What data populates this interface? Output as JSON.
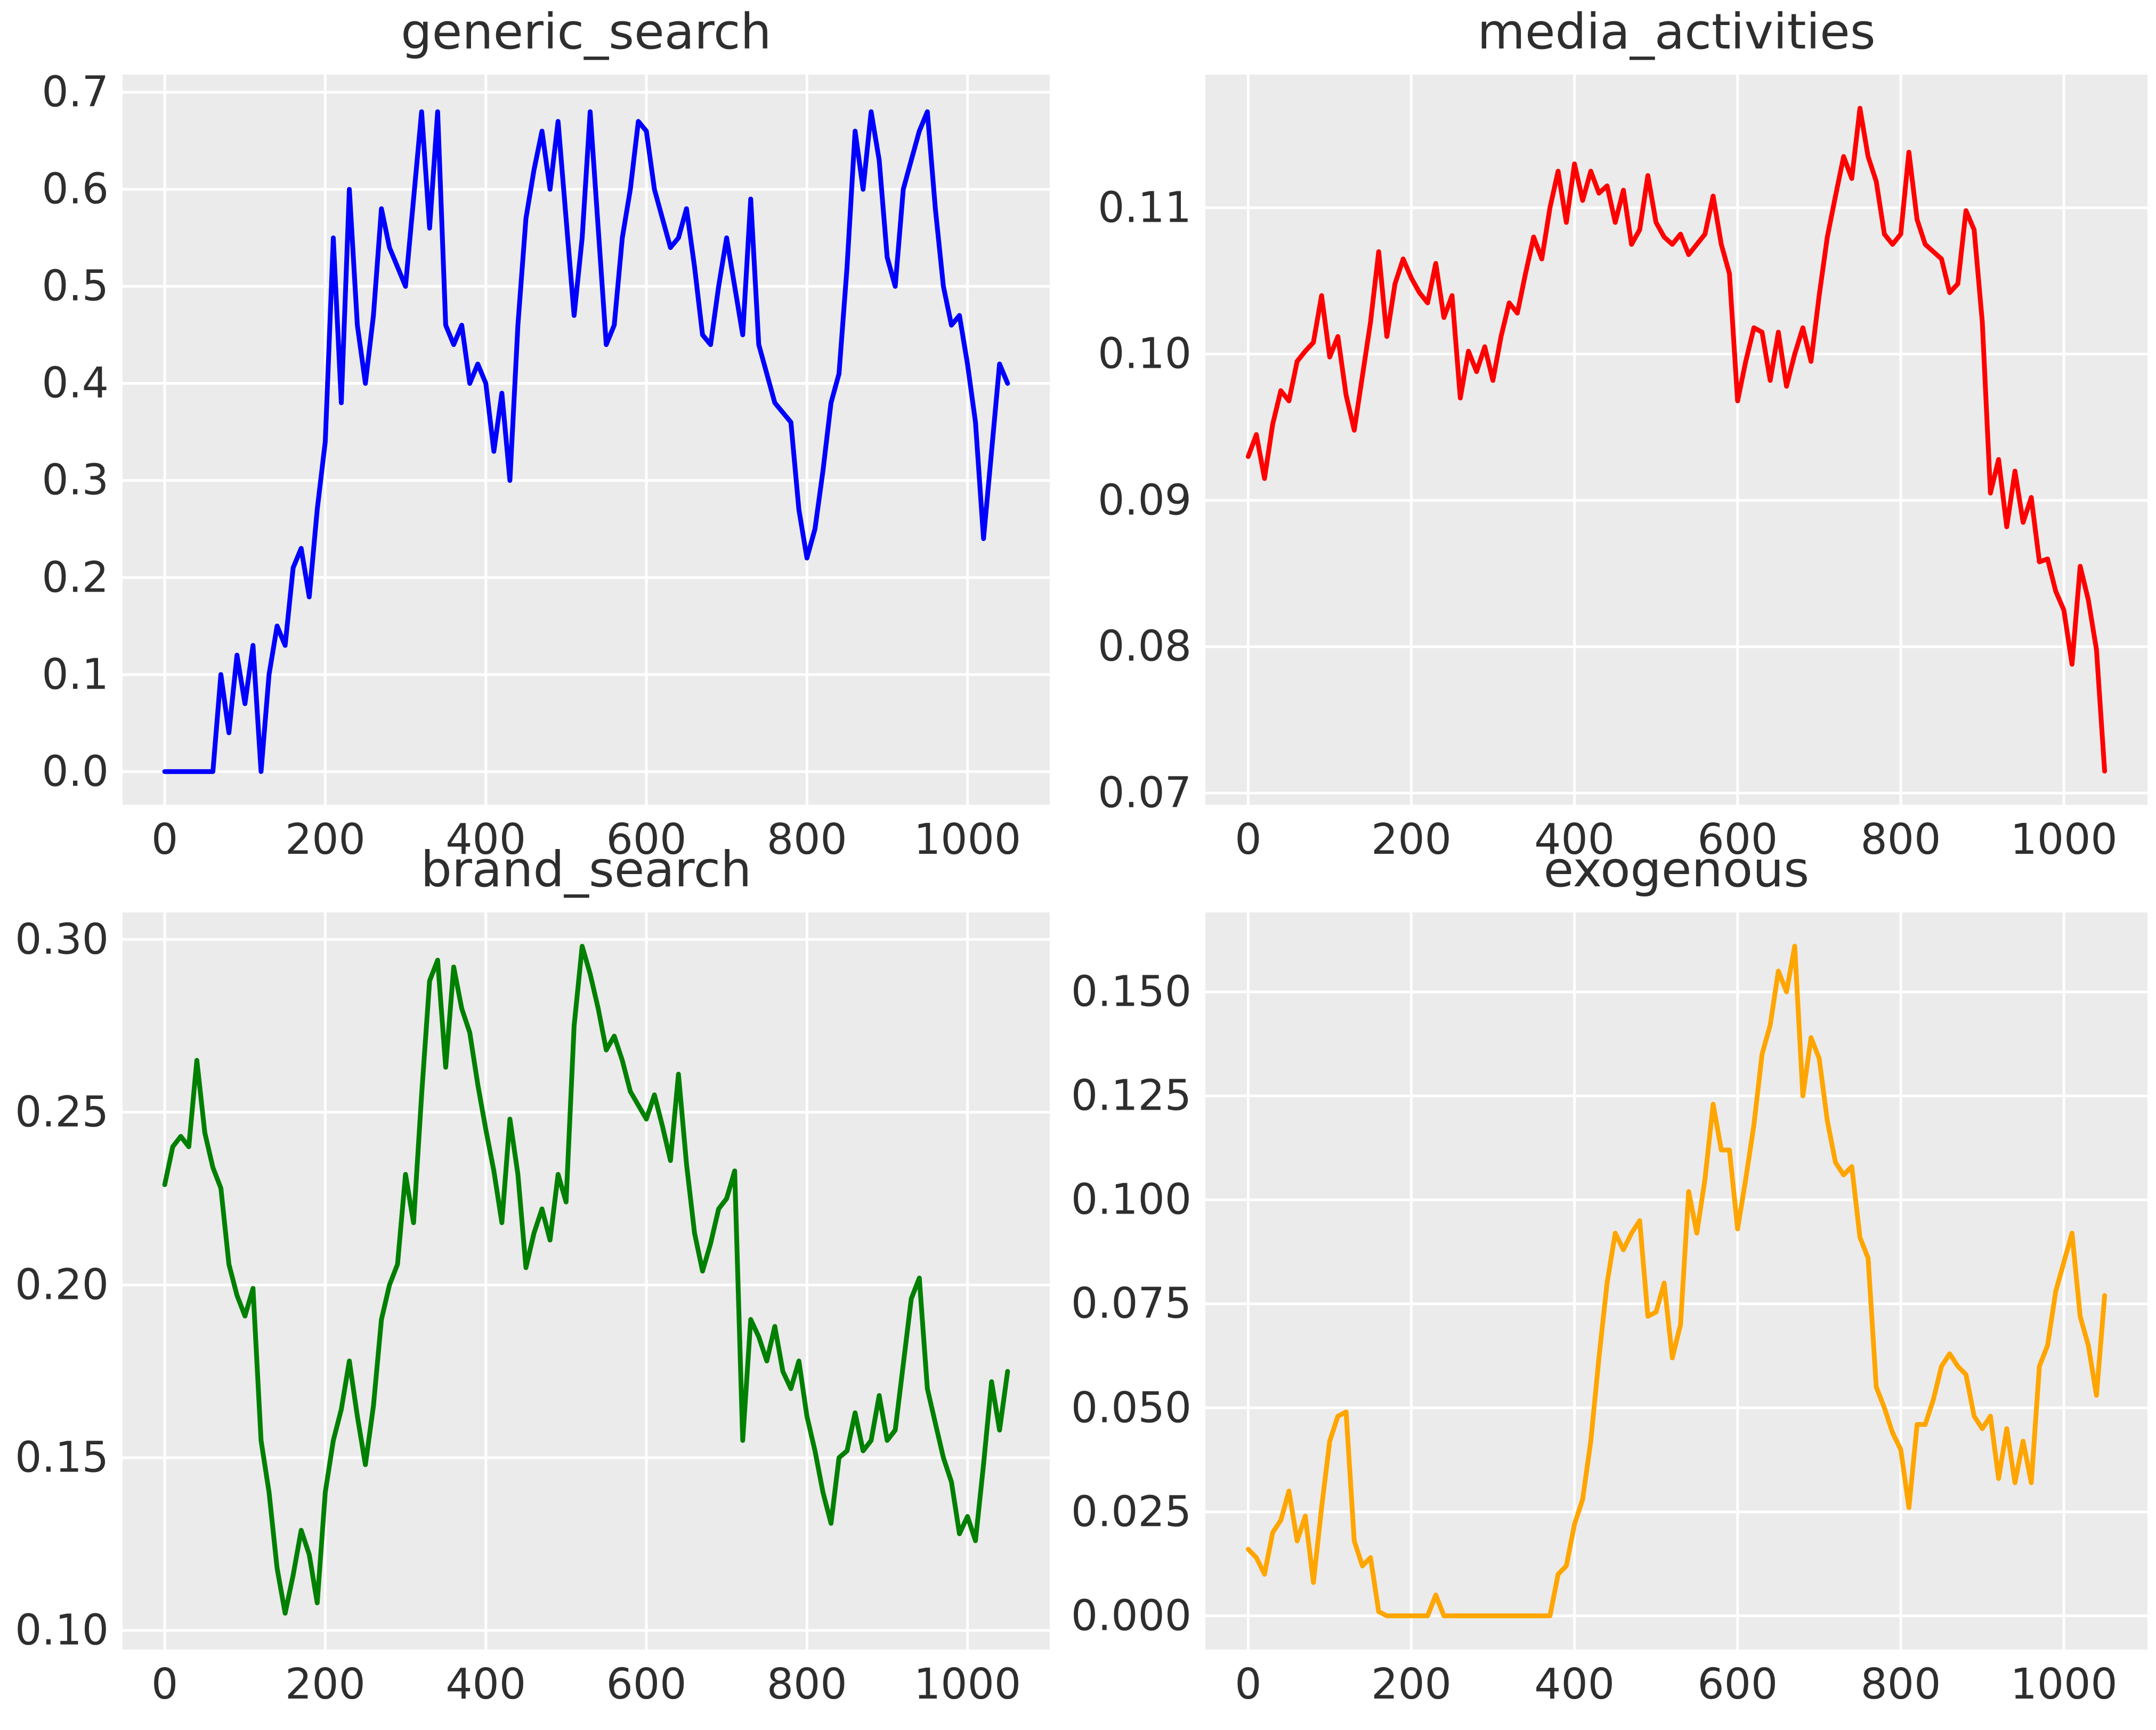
{
  "figure": {
    "background": "#ffffff",
    "axes_background": "#ebebeb",
    "grid_color": "#ffffff",
    "text_color": "#2e2e2e"
  },
  "chart_data": [
    {
      "type": "line",
      "title": "generic_search",
      "line_color": "#0000ff",
      "xlabel": "",
      "ylabel": "",
      "legend": "none",
      "grid": true,
      "x_tick_labels": [
        "0",
        "200",
        "400",
        "600",
        "800",
        "1000"
      ],
      "x_tick_values": [
        0,
        200,
        400,
        600,
        800,
        1000
      ],
      "y_tick_labels": [
        "0.0",
        "0.1",
        "0.2",
        "0.3",
        "0.4",
        "0.5",
        "0.6",
        "0.7"
      ],
      "y_tick_values": [
        0.0,
        0.1,
        0.2,
        0.3,
        0.4,
        0.5,
        0.6,
        0.7
      ],
      "xlim": [
        -52.5,
        1102.5
      ],
      "ylim": [
        -0.0342,
        0.7182
      ],
      "x_start": 0,
      "x_step": 10,
      "values": [
        0,
        0,
        0,
        0,
        0,
        0,
        0,
        0.1,
        0.04,
        0.12,
        0.07,
        0.13,
        0.0,
        0.1,
        0.15,
        0.13,
        0.21,
        0.23,
        0.18,
        0.27,
        0.34,
        0.55,
        0.38,
        0.6,
        0.46,
        0.4,
        0.47,
        0.58,
        0.54,
        0.52,
        0.5,
        0.59,
        0.68,
        0.56,
        0.68,
        0.46,
        0.44,
        0.46,
        0.4,
        0.42,
        0.4,
        0.33,
        0.39,
        0.3,
        0.46,
        0.57,
        0.62,
        0.66,
        0.6,
        0.67,
        0.57,
        0.47,
        0.55,
        0.68,
        0.56,
        0.44,
        0.46,
        0.55,
        0.6,
        0.67,
        0.66,
        0.6,
        0.57,
        0.54,
        0.55,
        0.58,
        0.52,
        0.45,
        0.44,
        0.5,
        0.55,
        0.5,
        0.45,
        0.59,
        0.44,
        0.41,
        0.38,
        0.37,
        0.36,
        0.27,
        0.22,
        0.25,
        0.31,
        0.38,
        0.41,
        0.52,
        0.66,
        0.6,
        0.68,
        0.63,
        0.53,
        0.5,
        0.6,
        0.63,
        0.66,
        0.68,
        0.58,
        0.5,
        0.46,
        0.47,
        0.42,
        0.36,
        0.24,
        0.33,
        0.42,
        0.4
      ]
    },
    {
      "type": "line",
      "title": "media_activities",
      "line_color": "#ff0000",
      "xlabel": "",
      "ylabel": "",
      "legend": "none",
      "grid": true,
      "x_tick_labels": [
        "0",
        "200",
        "400",
        "600",
        "800",
        "1000"
      ],
      "x_tick_values": [
        0,
        200,
        400,
        600,
        800,
        1000
      ],
      "y_tick_labels": [
        "0.07",
        "0.08",
        "0.09",
        "0.10",
        "0.11"
      ],
      "y_tick_values": [
        0.07,
        0.08,
        0.09,
        0.1,
        0.11
      ],
      "xlim": [
        -52.5,
        1102.5
      ],
      "ylim": [
        0.0692,
        0.1191
      ],
      "x_start": 0,
      "x_step": 10,
      "values": [
        0.093,
        0.0945,
        0.0915,
        0.0952,
        0.0975,
        0.0968,
        0.0995,
        0.1002,
        0.1008,
        0.104,
        0.0998,
        0.1012,
        0.0972,
        0.0948,
        0.0985,
        0.1022,
        0.107,
        0.1012,
        0.1048,
        0.1065,
        0.1052,
        0.1042,
        0.1035,
        0.1062,
        0.1025,
        0.104,
        0.097,
        0.1002,
        0.0988,
        0.1005,
        0.0982,
        0.1012,
        0.1035,
        0.1028,
        0.1055,
        0.108,
        0.1065,
        0.11,
        0.1125,
        0.109,
        0.113,
        0.1105,
        0.1125,
        0.111,
        0.1115,
        0.109,
        0.1112,
        0.1075,
        0.1085,
        0.1122,
        0.109,
        0.108,
        0.1075,
        0.1082,
        0.1068,
        0.1075,
        0.1082,
        0.1108,
        0.1075,
        0.1055,
        0.0968,
        0.0995,
        0.1018,
        0.1015,
        0.0982,
        0.1015,
        0.0978,
        0.1,
        0.1018,
        0.0995,
        0.104,
        0.108,
        0.1108,
        0.1135,
        0.112,
        0.1168,
        0.1135,
        0.1118,
        0.1082,
        0.1075,
        0.1082,
        0.1138,
        0.1092,
        0.1075,
        0.107,
        0.1065,
        0.1042,
        0.1048,
        0.1098,
        0.1085,
        0.1022,
        0.0905,
        0.0928,
        0.0882,
        0.092,
        0.0885,
        0.0902,
        0.0858,
        0.086,
        0.0838,
        0.0825,
        0.0788,
        0.0855,
        0.0832,
        0.0798,
        0.0715
      ]
    },
    {
      "type": "line",
      "title": "brand_search",
      "line_color": "#008000",
      "xlabel": "",
      "ylabel": "",
      "legend": "none",
      "grid": true,
      "x_tick_labels": [
        "0",
        "200",
        "400",
        "600",
        "800",
        "1000"
      ],
      "x_tick_values": [
        0,
        200,
        400,
        600,
        800,
        1000
      ],
      "y_tick_labels": [
        "0.10",
        "0.15",
        "0.20",
        "0.25",
        "0.30"
      ],
      "y_tick_values": [
        0.1,
        0.15,
        0.2,
        0.25,
        0.3
      ],
      "xlim": [
        -52.5,
        1102.5
      ],
      "ylim": [
        0.0945,
        0.3078
      ],
      "x_start": 0,
      "x_step": 10,
      "values": [
        0.229,
        0.24,
        0.243,
        0.24,
        0.265,
        0.244,
        0.234,
        0.228,
        0.206,
        0.197,
        0.191,
        0.199,
        0.155,
        0.14,
        0.118,
        0.105,
        0.116,
        0.129,
        0.122,
        0.108,
        0.14,
        0.155,
        0.164,
        0.178,
        0.162,
        0.148,
        0.165,
        0.19,
        0.2,
        0.206,
        0.232,
        0.218,
        0.255,
        0.288,
        0.294,
        0.263,
        0.292,
        0.28,
        0.273,
        0.258,
        0.245,
        0.233,
        0.218,
        0.248,
        0.232,
        0.205,
        0.215,
        0.222,
        0.213,
        0.232,
        0.224,
        0.275,
        0.298,
        0.29,
        0.28,
        0.268,
        0.272,
        0.265,
        0.256,
        0.252,
        0.248,
        0.255,
        0.246,
        0.236,
        0.261,
        0.235,
        0.215,
        0.204,
        0.212,
        0.222,
        0.225,
        0.233,
        0.155,
        0.19,
        0.185,
        0.178,
        0.188,
        0.175,
        0.17,
        0.178,
        0.162,
        0.152,
        0.14,
        0.131,
        0.15,
        0.152,
        0.163,
        0.152,
        0.155,
        0.168,
        0.155,
        0.158,
        0.177,
        0.196,
        0.202,
        0.17,
        0.16,
        0.15,
        0.143,
        0.128,
        0.133,
        0.126,
        0.148,
        0.172,
        0.158,
        0.175
      ]
    },
    {
      "type": "line",
      "title": "exogenous",
      "line_color": "#ffa500",
      "xlabel": "",
      "ylabel": "",
      "legend": "none",
      "grid": true,
      "x_tick_labels": [
        "0",
        "200",
        "400",
        "600",
        "800",
        "1000"
      ],
      "x_tick_values": [
        0,
        200,
        400,
        600,
        800,
        1000
      ],
      "y_tick_labels": [
        "0.000",
        "0.025",
        "0.050",
        "0.075",
        "0.100",
        "0.125",
        "0.150"
      ],
      "y_tick_values": [
        0.0,
        0.025,
        0.05,
        0.075,
        0.1,
        0.125,
        0.15
      ],
      "xlim": [
        -52.5,
        1102.5
      ],
      "ylim": [
        -0.0081,
        0.1691
      ],
      "x_start": 0,
      "x_step": 10,
      "values": [
        0.016,
        0.014,
        0.01,
        0.02,
        0.023,
        0.03,
        0.018,
        0.024,
        0.008,
        0.026,
        0.042,
        0.048,
        0.049,
        0.018,
        0.012,
        0.014,
        0.001,
        0,
        0,
        0,
        0,
        0,
        0,
        0.005,
        0,
        0,
        0,
        0,
        0,
        0,
        0,
        0,
        0,
        0,
        0,
        0,
        0,
        0,
        0.01,
        0.012,
        0.022,
        0.028,
        0.042,
        0.062,
        0.08,
        0.092,
        0.088,
        0.092,
        0.095,
        0.072,
        0.073,
        0.08,
        0.062,
        0.07,
        0.102,
        0.092,
        0.105,
        0.123,
        0.112,
        0.112,
        0.093,
        0.105,
        0.118,
        0.135,
        0.142,
        0.155,
        0.15,
        0.161,
        0.125,
        0.139,
        0.134,
        0.119,
        0.109,
        0.106,
        0.108,
        0.091,
        0.086,
        0.055,
        0.05,
        0.044,
        0.04,
        0.026,
        0.046,
        0.046,
        0.052,
        0.06,
        0.063,
        0.06,
        0.058,
        0.048,
        0.045,
        0.048,
        0.033,
        0.045,
        0.032,
        0.042,
        0.032,
        0.06,
        0.065,
        0.078,
        0.085,
        0.092,
        0.072,
        0.065,
        0.053,
        0.077
      ]
    }
  ]
}
